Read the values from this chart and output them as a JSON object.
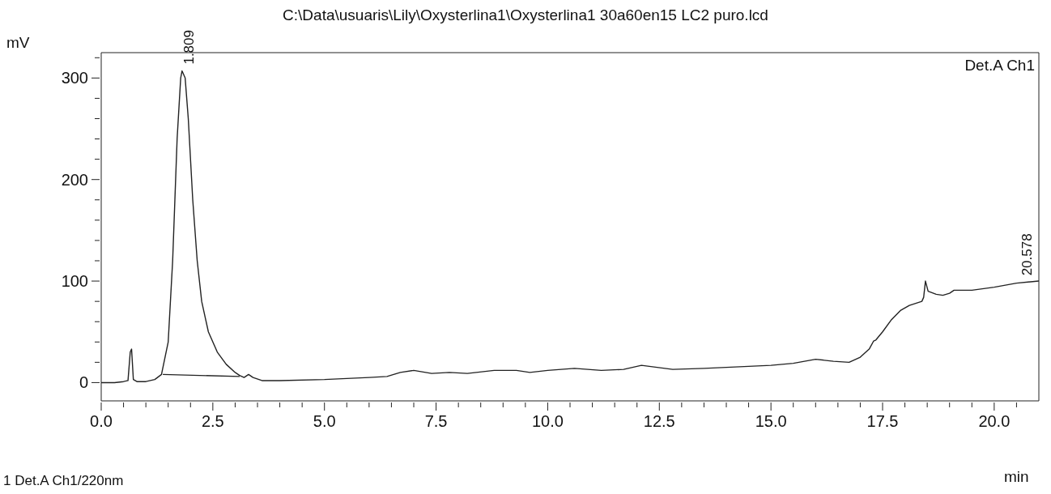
{
  "chart_data": {
    "type": "line",
    "title": "C:\\Data\\usuaris\\Lily\\Oxysterlina1\\Oxysterlina1 30a60en15 LC2 puro.lcd",
    "xlabel": "min",
    "ylabel": "mV",
    "xlim": [
      0,
      21
    ],
    "ylim": [
      -18,
      325
    ],
    "xticks": [
      {
        "value": 0,
        "label": "0.0"
      },
      {
        "value": 0.5,
        "label": null
      },
      {
        "value": 1,
        "label": null
      },
      {
        "value": 1.5,
        "label": null
      },
      {
        "value": 2,
        "label": null
      },
      2.5,
      {
        "value": 3,
        "label": null
      },
      {
        "value": 3.5,
        "label": null
      },
      {
        "value": 4,
        "label": null
      },
      {
        "value": 4.5,
        "label": null
      },
      {
        "value": 5,
        "label": "5.0"
      },
      {
        "value": 5.5,
        "label": null
      },
      {
        "value": 6,
        "label": null
      },
      {
        "value": 6.5,
        "label": null
      },
      {
        "value": 7,
        "label": null
      },
      7.5,
      {
        "value": 8,
        "label": null
      },
      {
        "value": 8.5,
        "label": null
      },
      {
        "value": 9,
        "label": null
      },
      {
        "value": 9.5,
        "label": null
      },
      {
        "value": 10,
        "label": "10.0"
      },
      {
        "value": 10.5,
        "label": null
      },
      {
        "value": 11,
        "label": null
      },
      {
        "value": 11.5,
        "label": null
      },
      {
        "value": 12,
        "label": null
      },
      12.5,
      {
        "value": 13,
        "label": null
      },
      {
        "value": 13.5,
        "label": null
      },
      {
        "value": 14,
        "label": null
      },
      {
        "value": 14.5,
        "label": null
      },
      {
        "value": 15,
        "label": "15.0"
      },
      {
        "value": 15.5,
        "label": null
      },
      {
        "value": 16,
        "label": null
      },
      {
        "value": 16.5,
        "label": null
      },
      {
        "value": 17,
        "label": null
      },
      17.5,
      {
        "value": 18,
        "label": null
      },
      {
        "value": 18.5,
        "label": null
      },
      {
        "value": 19,
        "label": null
      },
      {
        "value": 19.5,
        "label": null
      },
      {
        "value": 20,
        "label": "20.0"
      },
      {
        "value": 20.5,
        "label": null
      }
    ],
    "yticks": [
      0,
      {
        "value": 20,
        "label": null
      },
      {
        "value": 40,
        "label": null
      },
      {
        "value": 60,
        "label": null
      },
      {
        "value": 80,
        "label": null
      },
      100,
      {
        "value": 120,
        "label": null
      },
      {
        "value": 140,
        "label": null
      },
      {
        "value": 160,
        "label": null
      },
      {
        "value": 180,
        "label": null
      },
      200,
      {
        "value": 220,
        "label": null
      },
      {
        "value": 240,
        "label": null
      },
      {
        "value": 260,
        "label": null
      },
      {
        "value": 280,
        "label": null
      },
      300,
      {
        "value": 320,
        "label": null
      }
    ],
    "series": [
      {
        "color": "#222222",
        "x": [
          0,
          0.3,
          0.5,
          0.6,
          0.65,
          0.68,
          0.72,
          0.8,
          1.0,
          1.2,
          1.35,
          1.5,
          1.6,
          1.7,
          1.78,
          1.81,
          1.88,
          1.95,
          2.05,
          2.15,
          2.25,
          2.4,
          2.6,
          2.8,
          3.0,
          3.1,
          3.2,
          3.3,
          3.4,
          3.6,
          4.0,
          5.0,
          6.0,
          6.4,
          6.7,
          7.0,
          7.4,
          7.8,
          8.2,
          8.8,
          9.3,
          9.6,
          10.0,
          10.6,
          11.2,
          11.7,
          12.1,
          12.8,
          13.5,
          14.0,
          15.0,
          15.5,
          16.0,
          16.4,
          16.75,
          17.0,
          17.2,
          17.3,
          17.35,
          17.5,
          17.7,
          17.9,
          18.1,
          18.38,
          18.42,
          18.46,
          18.52,
          18.7,
          18.85,
          19.0,
          19.1,
          19.5,
          20.0,
          20.5,
          21.0
        ],
        "values": [
          0,
          0,
          1,
          2,
          30,
          33,
          3,
          1,
          1,
          3,
          8,
          40,
          120,
          240,
          300,
          307,
          300,
          260,
          180,
          120,
          80,
          50,
          30,
          18,
          10,
          7,
          5,
          8,
          5,
          2,
          2,
          3,
          5,
          6,
          10,
          12,
          9,
          10,
          9,
          12,
          12,
          10,
          12,
          14,
          12,
          13,
          17,
          13,
          14,
          15,
          17,
          19,
          23,
          21,
          20,
          25,
          33,
          41,
          42,
          50,
          62,
          71,
          76,
          80,
          84,
          100,
          90,
          87,
          86,
          88,
          91,
          91,
          94,
          98,
          100
        ]
      },
      {
        "color": "#222222",
        "x": [
          1.38,
          3.1
        ],
        "values": [
          8,
          6
        ]
      }
    ],
    "annotations": [
      {
        "text": "1.809",
        "x": 1.809,
        "y": 307
      },
      {
        "text": "20.578",
        "x": 20.578,
        "y": 99
      },
      "Det.A Ch1",
      "1 Det.A Ch1/220nm"
    ]
  }
}
